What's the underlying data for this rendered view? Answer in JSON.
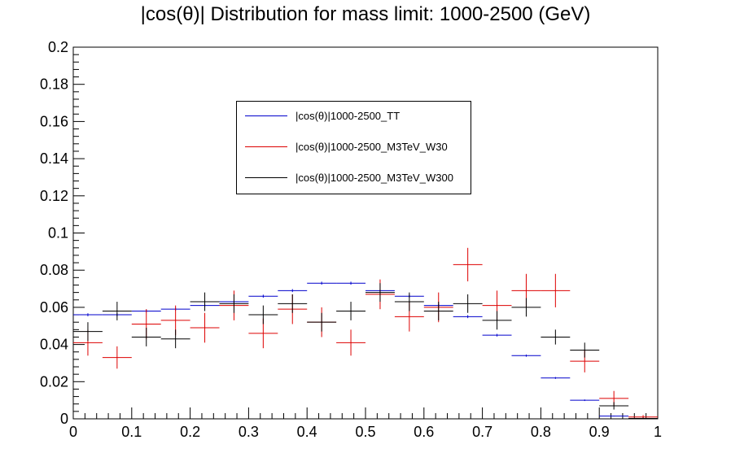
{
  "chart_data": {
    "type": "scatter",
    "title": "|cos(θ)| Distribution for mass limit: 1000-2500 (GeV)",
    "xlabel": "",
    "ylabel": "",
    "xlim": [
      0,
      1
    ],
    "ylim": [
      0,
      0.2
    ],
    "x_ticks": [
      "0",
      "0.1",
      "0.2",
      "0.3",
      "0.4",
      "0.5",
      "0.6",
      "0.7",
      "0.8",
      "0.9",
      "1"
    ],
    "y_ticks": [
      "0",
      "0.02",
      "0.04",
      "0.06",
      "0.08",
      "0.1",
      "0.12",
      "0.14",
      "0.16",
      "0.18",
      "0.2"
    ],
    "bin_width": 0.05,
    "x": [
      0.025,
      0.075,
      0.125,
      0.175,
      0.225,
      0.275,
      0.325,
      0.375,
      0.425,
      0.475,
      0.525,
      0.575,
      0.625,
      0.675,
      0.725,
      0.775,
      0.825,
      0.875,
      0.925,
      0.975
    ],
    "legend_position": "top-center",
    "grid": false,
    "series": [
      {
        "name": "|cos(θ)|1000-2500_TT",
        "color": "#0000cc",
        "values": [
          0.056,
          0.056,
          0.058,
          0.059,
          0.061,
          0.063,
          0.066,
          0.069,
          0.073,
          0.073,
          0.069,
          0.066,
          0.061,
          0.055,
          0.045,
          0.034,
          0.022,
          0.01,
          0.0015,
          0.0002
        ],
        "errors": [
          0.0008,
          0.0008,
          0.0008,
          0.0008,
          0.0008,
          0.0008,
          0.0008,
          0.0008,
          0.0008,
          0.0008,
          0.0008,
          0.0008,
          0.0008,
          0.0008,
          0.0007,
          0.0006,
          0.0005,
          0.0004,
          0.0002,
          0.0001
        ]
      },
      {
        "name": "|cos(θ)|1000-2500_M3TeV_W30",
        "color": "#dd0000",
        "values": [
          0.041,
          0.033,
          0.051,
          0.053,
          0.049,
          0.061,
          0.046,
          0.059,
          0.052,
          0.041,
          0.067,
          0.055,
          0.06,
          0.083,
          0.061,
          0.069,
          0.069,
          0.031,
          0.011,
          0.001
        ],
        "errors": [
          0.007,
          0.006,
          0.008,
          0.008,
          0.008,
          0.008,
          0.008,
          0.008,
          0.008,
          0.007,
          0.008,
          0.008,
          0.008,
          0.009,
          0.008,
          0.009,
          0.009,
          0.006,
          0.004,
          0.001
        ]
      },
      {
        "name": "|cos(θ)|1000-2500_M3TeV_W300",
        "color": "#000000",
        "values": [
          0.047,
          0.058,
          0.044,
          0.043,
          0.063,
          0.062,
          0.056,
          0.062,
          0.052,
          0.058,
          0.068,
          0.063,
          0.058,
          0.062,
          0.053,
          0.06,
          0.044,
          0.037,
          0.007,
          0.0002
        ],
        "errors": [
          0.005,
          0.005,
          0.005,
          0.005,
          0.005,
          0.005,
          0.005,
          0.005,
          0.005,
          0.005,
          0.005,
          0.005,
          0.005,
          0.005,
          0.005,
          0.005,
          0.004,
          0.004,
          0.002,
          0.0005
        ]
      }
    ]
  }
}
